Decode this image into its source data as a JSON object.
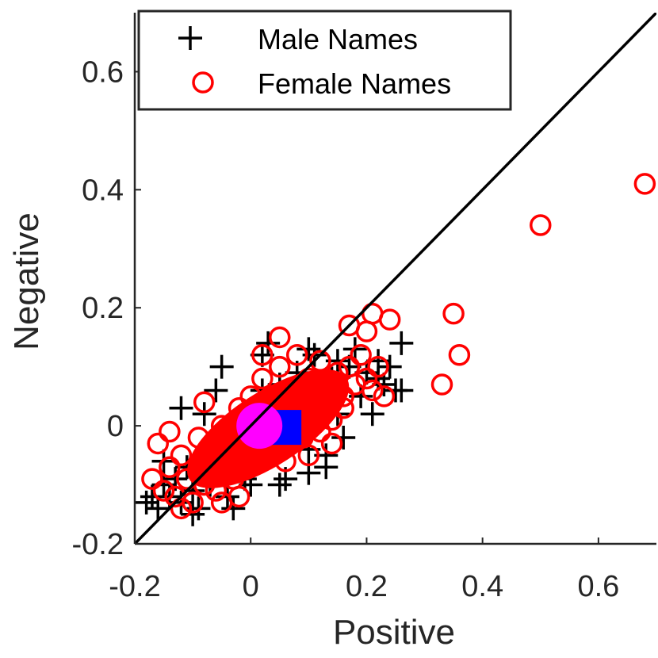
{
  "chart_data": {
    "type": "scatter",
    "title": "",
    "xlabel": "Positive",
    "ylabel": "Negative",
    "xlim": [
      -0.2,
      0.7
    ],
    "ylim": [
      -0.2,
      0.7
    ],
    "xticks": [
      -0.2,
      0,
      0.2,
      0.4,
      0.6
    ],
    "yticks": [
      -0.2,
      0,
      0.2,
      0.4,
      0.6
    ],
    "xtick_labels": [
      "-0.2",
      "0",
      "0.2",
      "0.4",
      "0.6"
    ],
    "ytick_labels": [
      "-0.2",
      "0",
      "0.2",
      "0.4",
      "0.6"
    ],
    "grid": false,
    "legend": {
      "position": "top-left",
      "entries": [
        "Male Names",
        "Female Names"
      ]
    },
    "reference_line": {
      "type": "identity",
      "from": [
        -0.2,
        -0.2
      ],
      "to": [
        0.7,
        0.7
      ],
      "color": "#000000"
    },
    "series": [
      {
        "name": "Male Names",
        "marker": "plus",
        "color": "#000000",
        "points": [
          [
            -0.18,
            -0.13
          ],
          [
            -0.17,
            -0.12
          ],
          [
            -0.16,
            -0.14
          ],
          [
            -0.15,
            -0.1
          ],
          [
            -0.14,
            -0.12
          ],
          [
            -0.13,
            -0.09
          ],
          [
            -0.12,
            -0.13
          ],
          [
            -0.11,
            -0.07
          ],
          [
            -0.1,
            -0.11
          ],
          [
            -0.09,
            -0.14
          ],
          [
            -0.08,
            -0.06
          ],
          [
            -0.07,
            -0.1
          ],
          [
            -0.06,
            -0.05
          ],
          [
            -0.05,
            -0.08
          ],
          [
            -0.04,
            -0.12
          ],
          [
            -0.03,
            -0.03
          ],
          [
            -0.02,
            -0.06
          ],
          [
            -0.01,
            -0.09
          ],
          [
            0.0,
            0.02
          ],
          [
            0.01,
            -0.03
          ],
          [
            0.02,
            0.06
          ],
          [
            0.03,
            0.0
          ],
          [
            0.04,
            -0.05
          ],
          [
            0.05,
            0.07
          ],
          [
            0.06,
            0.04
          ],
          [
            0.07,
            -0.02
          ],
          [
            0.08,
            0.09
          ],
          [
            0.09,
            0.03
          ],
          [
            0.1,
            -0.04
          ],
          [
            0.11,
            0.12
          ],
          [
            0.12,
            0.06
          ],
          [
            0.13,
            -0.05
          ],
          [
            0.14,
            0.08
          ],
          [
            0.15,
            0.02
          ],
          [
            0.16,
            -0.02
          ],
          [
            0.17,
            0.1
          ],
          [
            0.18,
            0.13
          ],
          [
            0.19,
            0.05
          ],
          [
            0.2,
            0.09
          ],
          [
            0.21,
            0.02
          ],
          [
            0.22,
            0.11
          ],
          [
            0.23,
            0.07
          ],
          [
            0.24,
            0.1
          ],
          [
            0.25,
            0.06
          ],
          [
            0.26,
            0.14
          ],
          [
            0.26,
            0.06
          ],
          [
            0.13,
            -0.07
          ],
          [
            0.1,
            -0.08
          ],
          [
            0.06,
            -0.09
          ],
          [
            -0.06,
            0.06
          ],
          [
            -0.08,
            0.02
          ],
          [
            0.03,
            0.14
          ],
          [
            0.1,
            0.13
          ],
          [
            -0.03,
            -0.14
          ],
          [
            -0.1,
            -0.15
          ],
          [
            -0.12,
            0.03
          ],
          [
            -0.05,
            0.1
          ],
          [
            0.0,
            -0.1
          ],
          [
            0.05,
            -0.1
          ],
          [
            0.15,
            0.11
          ],
          [
            0.22,
            0.08
          ],
          [
            0.02,
            0.12
          ],
          [
            -0.15,
            -0.06
          ],
          [
            0.08,
            -0.02
          ],
          [
            0.12,
            0.02
          ]
        ]
      },
      {
        "name": "Female Names",
        "marker": "circle",
        "color": "#ff0000",
        "points": [
          [
            -0.17,
            -0.09
          ],
          [
            -0.16,
            -0.03
          ],
          [
            -0.15,
            -0.11
          ],
          [
            -0.14,
            -0.07
          ],
          [
            -0.13,
            -0.12
          ],
          [
            -0.12,
            -0.05
          ],
          [
            -0.11,
            -0.09
          ],
          [
            -0.1,
            -0.13
          ],
          [
            -0.09,
            -0.02
          ],
          [
            -0.08,
            -0.1
          ],
          [
            -0.07,
            -0.06
          ],
          [
            -0.06,
            -0.11
          ],
          [
            -0.05,
            0.0
          ],
          [
            -0.04,
            -0.04
          ],
          [
            -0.03,
            -0.09
          ],
          [
            -0.02,
            0.03
          ],
          [
            -0.01,
            -0.02
          ],
          [
            0.0,
            0.05
          ],
          [
            0.01,
            -0.01
          ],
          [
            0.02,
            0.08
          ],
          [
            0.03,
            0.02
          ],
          [
            0.04,
            -0.03
          ],
          [
            0.05,
            0.1
          ],
          [
            0.06,
            0.06
          ],
          [
            0.07,
            0.01
          ],
          [
            0.08,
            0.04
          ],
          [
            0.09,
            -0.02
          ],
          [
            0.1,
            0.08
          ],
          [
            0.11,
            0.03
          ],
          [
            0.12,
            -0.01
          ],
          [
            0.13,
            0.06
          ],
          [
            0.14,
            0.01
          ],
          [
            0.15,
            0.09
          ],
          [
            0.16,
            0.05
          ],
          [
            0.17,
            0.1
          ],
          [
            0.18,
            0.07
          ],
          [
            0.19,
            0.12
          ],
          [
            0.2,
            0.08
          ],
          [
            0.21,
            0.06
          ],
          [
            0.22,
            0.1
          ],
          [
            0.23,
            0.05
          ],
          [
            0.05,
            0.15
          ],
          [
            0.17,
            0.17
          ],
          [
            0.2,
            0.16
          ],
          [
            0.21,
            0.19
          ],
          [
            0.24,
            0.18
          ],
          [
            0.35,
            0.19
          ],
          [
            0.36,
            0.12
          ],
          [
            0.33,
            0.07
          ],
          [
            0.5,
            0.34
          ],
          [
            0.68,
            0.41
          ],
          [
            -0.05,
            -0.13
          ],
          [
            -0.12,
            -0.14
          ],
          [
            0.0,
            -0.07
          ],
          [
            0.06,
            -0.06
          ],
          [
            0.1,
            -0.05
          ],
          [
            0.14,
            -0.03
          ],
          [
            -0.08,
            0.04
          ],
          [
            0.02,
            0.12
          ],
          [
            -0.14,
            -0.01
          ],
          [
            0.08,
            0.12
          ],
          [
            -0.02,
            -0.12
          ],
          [
            0.12,
            0.11
          ],
          [
            0.16,
            0.03
          ],
          [
            -0.09,
            -0.08
          ]
        ]
      }
    ],
    "highlight_markers": [
      {
        "shape": "square",
        "color": "#0000ff",
        "x": 0.03,
        "y": 0.0
      },
      {
        "shape": "circle",
        "color": "#ff00ff",
        "x": 0.015,
        "y": 0.0
      }
    ]
  }
}
